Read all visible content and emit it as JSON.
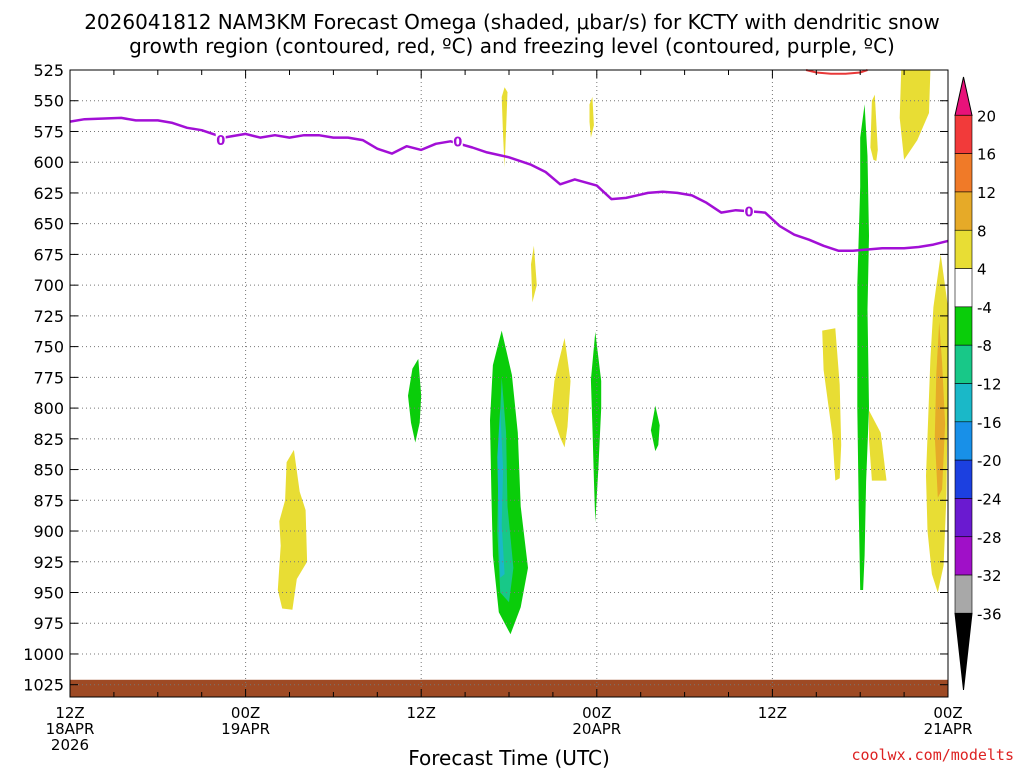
{
  "chart_data": {
    "type": "heatmap",
    "title_line1": "2026041812 NAM3KM Forecast Omega (shaded, μbar/s) for KCTY with dendritic snow",
    "title_line2": "growth region (contoured, red, ºC) and freezing level (contoured, purple, ºC)",
    "xlabel": "Forecast Time (UTC)",
    "credit": "coolwx.com/modelts",
    "y_axis": {
      "unit": "hPa",
      "inverted": true,
      "range": [
        1035,
        525
      ],
      "ticks": [
        525,
        550,
        575,
        600,
        625,
        650,
        675,
        700,
        725,
        750,
        775,
        800,
        825,
        850,
        875,
        900,
        925,
        950,
        975,
        1000,
        1025
      ]
    },
    "x_axis": {
      "unit": "hours since 12Z 18APR 2026",
      "range": [
        0,
        60
      ],
      "major_ticks": [
        {
          "hour": 0,
          "label1": "12Z",
          "label2": "18APR",
          "label3": "2026"
        },
        {
          "hour": 12,
          "label1": "00Z",
          "label2": "19APR",
          "label3": ""
        },
        {
          "hour": 24,
          "label1": "12Z",
          "label2": "",
          "label3": ""
        },
        {
          "hour": 36,
          "label1": "00Z",
          "label2": "20APR",
          "label3": ""
        },
        {
          "hour": 48,
          "label1": "12Z",
          "label2": "",
          "label3": ""
        },
        {
          "hour": 60,
          "label1": "00Z",
          "label2": "21APR",
          "label3": ""
        }
      ],
      "grid_hours": [
        12,
        24,
        36,
        48,
        60
      ]
    },
    "grid": "dotted",
    "colorbar": {
      "labels": [
        "20",
        "16",
        "12",
        "8",
        "4",
        "-4",
        "-8",
        "-12",
        "-16",
        "-20",
        "-24",
        "-28",
        "-32",
        "-36"
      ],
      "colors": [
        "#e8127a",
        "#f23a3a",
        "#f07a28",
        "#e6aa28",
        "#e8dd34",
        "#ffffff",
        "#0acd0a",
        "#18c888",
        "#1ab8c8",
        "#1890e8",
        "#1c40e0",
        "#6a1ad0",
        "#a010c8",
        "#a8a8a8",
        "#000000"
      ]
    },
    "freezing_level": {
      "color": "#a20fd6",
      "label": "0",
      "label_points": [
        [
          10.3,
          582
        ],
        [
          26.5,
          583
        ],
        [
          46.4,
          640
        ]
      ],
      "points": [
        [
          0,
          567
        ],
        [
          1,
          565
        ],
        [
          3.5,
          564
        ],
        [
          4.5,
          566
        ],
        [
          6,
          566
        ],
        [
          7,
          568
        ],
        [
          8,
          572
        ],
        [
          9,
          574
        ],
        [
          10.5,
          580
        ],
        [
          12,
          577
        ],
        [
          13,
          580
        ],
        [
          14,
          578
        ],
        [
          15,
          580
        ],
        [
          16,
          578
        ],
        [
          17,
          578
        ],
        [
          18,
          580
        ],
        [
          19,
          580
        ],
        [
          20,
          582
        ],
        [
          21,
          589
        ],
        [
          22,
          593
        ],
        [
          23,
          587
        ],
        [
          24,
          590
        ],
        [
          25,
          585
        ],
        [
          26,
          583
        ],
        [
          27.5,
          588
        ],
        [
          28.5,
          592
        ],
        [
          30,
          596
        ],
        [
          31.5,
          602
        ],
        [
          32.5,
          608
        ],
        [
          33.5,
          618
        ],
        [
          34.5,
          614
        ],
        [
          36,
          619
        ],
        [
          37,
          630
        ],
        [
          38,
          629
        ],
        [
          39.5,
          625
        ],
        [
          40.5,
          624
        ],
        [
          41.5,
          625
        ],
        [
          42.5,
          627
        ],
        [
          43.5,
          633
        ],
        [
          44.5,
          641
        ],
        [
          45.5,
          639
        ],
        [
          46.5,
          640
        ],
        [
          47.5,
          641
        ],
        [
          48.5,
          652
        ],
        [
          49.5,
          659
        ],
        [
          50.5,
          663
        ],
        [
          51.5,
          668
        ],
        [
          52.5,
          672
        ],
        [
          53.5,
          672
        ],
        [
          54.5,
          671
        ],
        [
          55.5,
          670
        ],
        [
          57,
          670
        ],
        [
          58,
          669
        ],
        [
          59,
          667
        ],
        [
          60,
          664
        ]
      ]
    },
    "dgz_contour": {
      "color": "#e83838",
      "points": [
        [
          50.3,
          525
        ],
        [
          51,
          527
        ],
        [
          52,
          528
        ],
        [
          53,
          528
        ],
        [
          54,
          527
        ],
        [
          54.5,
          525
        ]
      ]
    },
    "surface": {
      "color": "#9e4a24",
      "pressure": 1021
    },
    "omega_areas": [
      {
        "value": 4,
        "points": [
          [
            14.8,
            844
          ],
          [
            15.3,
            834
          ],
          [
            15.7,
            868
          ],
          [
            16.1,
            883
          ],
          [
            16.2,
            925
          ],
          [
            15.5,
            939
          ],
          [
            15.2,
            964
          ],
          [
            14.5,
            963
          ],
          [
            14.2,
            948
          ],
          [
            14.4,
            912
          ],
          [
            14.3,
            892
          ],
          [
            14.7,
            875
          ]
        ]
      },
      {
        "value": 4,
        "points": [
          [
            29.5,
            547
          ],
          [
            29.7,
            539
          ],
          [
            29.9,
            543
          ],
          [
            29.8,
            573
          ],
          [
            29.7,
            604
          ],
          [
            29.6,
            579
          ]
        ]
      },
      {
        "value": 4,
        "points": [
          [
            35.5,
            553
          ],
          [
            35.7,
            547
          ],
          [
            35.8,
            570
          ],
          [
            35.6,
            580
          ],
          [
            35.5,
            567
          ]
        ]
      },
      {
        "value": 4,
        "points": [
          [
            31.5,
            683
          ],
          [
            31.7,
            668
          ],
          [
            31.9,
            700
          ],
          [
            31.6,
            714
          ]
        ]
      },
      {
        "value": 4,
        "points": [
          [
            33.4,
            762
          ],
          [
            33.8,
            743
          ],
          [
            34.2,
            778
          ],
          [
            34.0,
            815
          ],
          [
            33.8,
            832
          ],
          [
            33.5,
            824
          ],
          [
            32.9,
            803
          ],
          [
            33.1,
            778
          ]
        ]
      },
      {
        "value": 4,
        "points": [
          [
            51.4,
            737
          ],
          [
            52.3,
            735
          ],
          [
            52.6,
            781
          ],
          [
            52.7,
            830
          ],
          [
            52.6,
            857
          ],
          [
            52.3,
            859
          ],
          [
            52.1,
            822
          ],
          [
            51.5,
            769
          ]
        ]
      },
      {
        "value": 4,
        "points": [
          [
            54.8,
            550
          ],
          [
            55.0,
            545
          ],
          [
            55.2,
            590
          ],
          [
            55.1,
            599
          ],
          [
            54.9,
            598
          ],
          [
            54.7,
            588
          ]
        ]
      },
      {
        "value": 4,
        "points": [
          [
            57.4,
            525
          ],
          [
            58.8,
            525
          ],
          [
            58.7,
            560
          ],
          [
            57.9,
            582
          ],
          [
            57.0,
            598
          ],
          [
            56.7,
            564
          ],
          [
            56.8,
            525
          ]
        ]
      },
      {
        "value": 4,
        "points": [
          [
            54.6,
            802
          ],
          [
            55.4,
            820
          ],
          [
            55.8,
            859
          ],
          [
            54.8,
            859
          ],
          [
            54.6,
            826
          ]
        ]
      },
      {
        "value": 4,
        "points": [
          [
            59.5,
            675
          ],
          [
            60,
            718
          ],
          [
            60,
            773
          ],
          [
            59.9,
            870
          ],
          [
            59.7,
            928
          ],
          [
            59.3,
            950
          ],
          [
            58.9,
            935
          ],
          [
            58.6,
            900
          ],
          [
            58.5,
            855
          ],
          [
            58.6,
            823
          ],
          [
            58.8,
            760
          ],
          [
            59.0,
            718
          ]
        ]
      },
      {
        "value": 8,
        "points": [
          [
            59.4,
            730
          ],
          [
            59.6,
            763
          ],
          [
            59.8,
            813
          ],
          [
            59.6,
            866
          ],
          [
            59.3,
            873
          ],
          [
            59.1,
            823
          ],
          [
            59.2,
            772
          ]
        ]
      },
      {
        "value": -4,
        "points": [
          [
            23.4,
            768
          ],
          [
            23.8,
            760
          ],
          [
            24.0,
            790
          ],
          [
            23.9,
            812
          ],
          [
            23.6,
            828
          ],
          [
            23.3,
            812
          ],
          [
            23.1,
            790
          ]
        ]
      },
      {
        "value": -4,
        "points": [
          [
            29.5,
            737
          ],
          [
            30.2,
            773
          ],
          [
            30.6,
            820
          ],
          [
            30.8,
            880
          ],
          [
            31.3,
            930
          ],
          [
            30.8,
            962
          ],
          [
            30.1,
            984
          ],
          [
            29.3,
            966
          ],
          [
            28.9,
            920
          ],
          [
            28.8,
            870
          ],
          [
            28.7,
            810
          ],
          [
            28.9,
            765
          ]
        ]
      },
      {
        "value": -4,
        "points": [
          [
            35.9,
            738
          ],
          [
            36.3,
            778
          ],
          [
            36.3,
            800
          ],
          [
            36.1,
            850
          ],
          [
            35.9,
            893
          ],
          [
            35.8,
            858
          ],
          [
            35.7,
            815
          ],
          [
            35.6,
            777
          ]
        ]
      },
      {
        "value": -4,
        "points": [
          [
            40.0,
            798
          ],
          [
            40.3,
            814
          ],
          [
            40.2,
            830
          ],
          [
            40.0,
            835
          ],
          [
            39.7,
            818
          ]
        ]
      },
      {
        "value": -4,
        "points": [
          [
            54.3,
            553
          ],
          [
            54.5,
            595
          ],
          [
            54.6,
            660
          ],
          [
            54.5,
            720
          ],
          [
            54.6,
            800
          ],
          [
            54.4,
            860
          ],
          [
            54.3,
            920
          ],
          [
            54.2,
            948
          ],
          [
            54.0,
            948
          ],
          [
            53.9,
            880
          ],
          [
            53.8,
            800
          ],
          [
            53.8,
            700
          ],
          [
            54.0,
            620
          ],
          [
            54.0,
            580
          ]
        ]
      },
      {
        "value": -8,
        "points": [
          [
            29.5,
            775
          ],
          [
            29.8,
            820
          ],
          [
            29.9,
            880
          ],
          [
            30.3,
            930
          ],
          [
            30.0,
            958
          ],
          [
            29.4,
            950
          ],
          [
            29.2,
            900
          ],
          [
            29.3,
            830
          ]
        ]
      },
      {
        "value": -12,
        "points": [
          [
            29.4,
            800
          ],
          [
            29.6,
            850
          ],
          [
            29.5,
            895
          ],
          [
            29.7,
            935
          ],
          [
            29.4,
            938
          ],
          [
            29.3,
            895
          ],
          [
            29.2,
            840
          ]
        ]
      }
    ]
  }
}
